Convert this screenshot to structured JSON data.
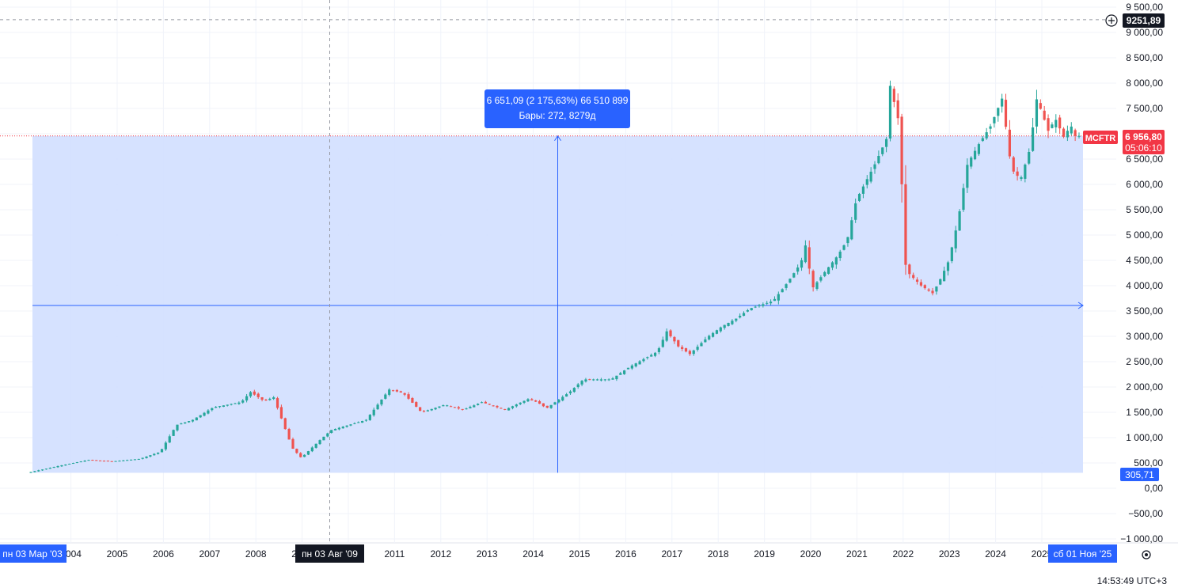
{
  "symbol": "MCFTR",
  "clock": "14:53:49 UTC+3",
  "colors": {
    "up": "#26a69a",
    "down": "#ef5350",
    "range_fill": "#d1dfff",
    "accent": "#2962ff",
    "symbol_label": "#f23645"
  },
  "price_labels": {
    "last_price": "6 956,80",
    "countdown": "05:06:10",
    "crosshair_price": "9251,89",
    "range_low_price": "305,71"
  },
  "range_tooltip": {
    "line1": "6 651,09 (2 175,63%) 66 510 899",
    "line2": "Бары: 272, 8279д"
  },
  "date_labels": {
    "range_start": "пн 03 Мар '03",
    "crosshair_date": "пн 03 Авг '09",
    "range_end": "сб 01 Ноя '25"
  },
  "y_axis_ticks": [
    "9 500,00",
    "9 000,00",
    "8 500,00",
    "8 000,00",
    "7 500,00",
    "7 000,00",
    "6 500,00",
    "6 000,00",
    "5 500,00",
    "5 000,00",
    "4 500,00",
    "4 000,00",
    "3 500,00",
    "3 000,00",
    "2 500,00",
    "2 000,00",
    "1 500,00",
    "1 000,00",
    "500,00",
    "0,00",
    "−500,00",
    "−1 000,00"
  ],
  "x_axis_ticks": [
    "2004",
    "2005",
    "2006",
    "2007",
    "2008",
    "2009",
    "2010",
    "2011",
    "2012",
    "2013",
    "2014",
    "2015",
    "2016",
    "2017",
    "2018",
    "2019",
    "2020",
    "2021",
    "2022",
    "2023",
    "2024",
    "2025"
  ],
  "chart_data": {
    "type": "candlestick",
    "symbol": "MCFTR",
    "interval": "1 month",
    "ylim": [
      -1000,
      9500
    ],
    "y_ticks": [
      9500,
      9000,
      8500,
      8000,
      7500,
      7000,
      6500,
      6000,
      5500,
      5000,
      4500,
      4000,
      3500,
      3000,
      2500,
      2000,
      1500,
      1000,
      500,
      0,
      -500,
      -1000
    ],
    "x_ticks": [
      2004,
      2005,
      2006,
      2007,
      2008,
      2009,
      2010,
      2011,
      2012,
      2013,
      2014,
      2015,
      2016,
      2017,
      2018,
      2019,
      2020,
      2021,
      2022,
      2023,
      2024,
      2025
    ],
    "grid": true,
    "last_price": 6956.8,
    "measure_range": {
      "from_date": "2003-03-03",
      "to_date": "2025-11-01",
      "from_price": 305.71,
      "to_price": 6956.8,
      "change": 6651.09,
      "change_percent": 2175.63,
      "volume": 66510899,
      "bars": 272,
      "days": 8279
    },
    "crosshair": {
      "date": "2009-08-03",
      "price": 9251.89
    },
    "anchors": [
      [
        2003.17,
        305
      ],
      [
        2003.9,
        450
      ],
      [
        2004.5,
        560
      ],
      [
        2005.0,
        530
      ],
      [
        2005.6,
        580
      ],
      [
        2006.05,
        720
      ],
      [
        2006.4,
        1250
      ],
      [
        2006.75,
        1350
      ],
      [
        2007.2,
        1600
      ],
      [
        2007.8,
        1700
      ],
      [
        2008.0,
        1900
      ],
      [
        2008.3,
        1720
      ],
      [
        2008.5,
        1800
      ],
      [
        2008.9,
        800
      ],
      [
        2009.1,
        600
      ],
      [
        2009.5,
        950
      ],
      [
        2009.75,
        1150
      ],
      [
        2010.5,
        1350
      ],
      [
        2011.0,
        1950
      ],
      [
        2011.3,
        1880
      ],
      [
        2011.7,
        1500
      ],
      [
        2012.2,
        1650
      ],
      [
        2012.6,
        1550
      ],
      [
        2013.0,
        1700
      ],
      [
        2013.5,
        1550
      ],
      [
        2014.0,
        1760
      ],
      [
        2014.2,
        1700
      ],
      [
        2014.4,
        1580
      ],
      [
        2014.9,
        1900
      ],
      [
        2015.2,
        2150
      ],
      [
        2015.8,
        2150
      ],
      [
        2016.2,
        2400
      ],
      [
        2016.8,
        2700
      ],
      [
        2017.0,
        3100
      ],
      [
        2017.25,
        2800
      ],
      [
        2017.5,
        2650
      ],
      [
        2017.9,
        3000
      ],
      [
        2018.2,
        3200
      ],
      [
        2018.5,
        3350
      ],
      [
        2018.8,
        3550
      ],
      [
        2019.3,
        3700
      ],
      [
        2019.6,
        4050
      ],
      [
        2019.9,
        4450
      ],
      [
        2020.0,
        4800
      ],
      [
        2020.15,
        3950
      ],
      [
        2020.4,
        4250
      ],
      [
        2020.7,
        4600
      ],
      [
        2020.9,
        4900
      ],
      [
        2021.1,
        5700
      ],
      [
        2021.5,
        6400
      ],
      [
        2021.75,
        6900
      ],
      [
        2021.83,
        7950
      ],
      [
        2022.0,
        7300
      ],
      [
        2022.1,
        5700
      ],
      [
        2022.17,
        4300
      ],
      [
        2022.5,
        4000
      ],
      [
        2022.75,
        3850
      ],
      [
        2022.9,
        4100
      ],
      [
        2023.1,
        4500
      ],
      [
        2023.3,
        5300
      ],
      [
        2023.5,
        6400
      ],
      [
        2023.75,
        6800
      ],
      [
        2024.0,
        7150
      ],
      [
        2024.25,
        7700
      ],
      [
        2024.45,
        6300
      ],
      [
        2024.65,
        6100
      ],
      [
        2024.85,
        6700
      ],
      [
        2025.0,
        7700
      ],
      [
        2025.25,
        7050
      ],
      [
        2025.4,
        7300
      ],
      [
        2025.6,
        6900
      ],
      [
        2025.72,
        7200
      ],
      [
        2025.83,
        6956.8
      ]
    ]
  }
}
